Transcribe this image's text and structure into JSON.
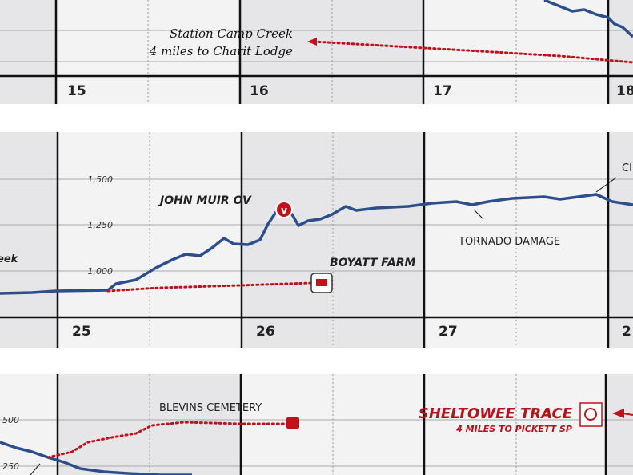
{
  "panels": [
    {
      "miles": [
        "15",
        "16",
        "17",
        "18"
      ],
      "annotations": {
        "place": "Station Camp Creek",
        "note": "4 miles to Charit Lodge"
      }
    },
    {
      "miles": [
        "25",
        "26",
        "27",
        "2"
      ],
      "elevations": [
        "1,500",
        "1,250",
        "1,000"
      ],
      "annotations": {
        "left": "eek",
        "overlook": "JOHN MUIR OV",
        "farm": "BOYATT FARM",
        "damage": "TORNADO DAMAGE",
        "right": "Cl"
      }
    },
    {
      "elevations": [
        "500",
        "250"
      ],
      "annotations": {
        "cemetery": "BLEVINS CEMETERY",
        "trace": "SHELTOWEE TRACE",
        "note": "4 MILES TO PICKETT SP"
      }
    }
  ]
}
